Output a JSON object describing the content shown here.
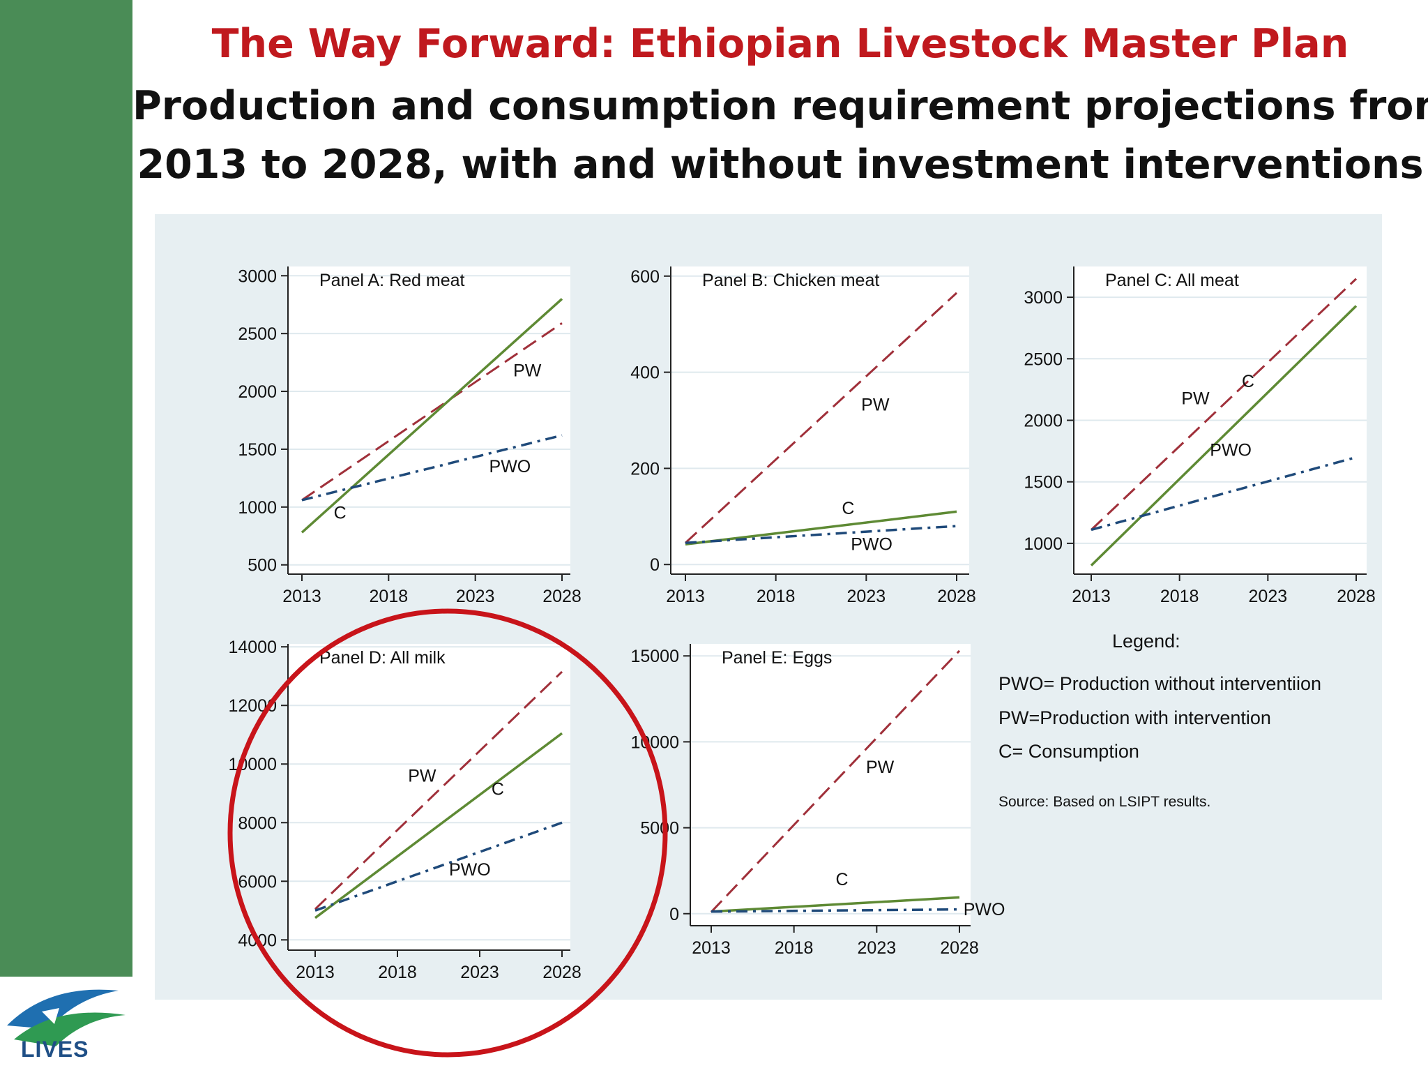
{
  "title": "The Way Forward: Ethiopian Livestock Master Plan",
  "subtitle_line1": "Production and consumption requirement projections from",
  "subtitle_line2": "2013 to 2028, with and without investment interventions",
  "logo_text": "LIVES",
  "colors": {
    "sidebar": "#4a8c56",
    "title": "#c0191e",
    "pw": "#a0303a",
    "c": "#5e8a34",
    "pwo": "#1f4a7a",
    "circle": "#c8141a"
  },
  "legend": {
    "title": "Legend:",
    "pwo": "PWO= Production without interventiion",
    "pw": "PW=Production with intervention",
    "c": "C=  Consumption",
    "source": "Source: Based on LSIPT results."
  },
  "chart_data": [
    {
      "type": "line",
      "title": "Panel A: Red meat",
      "x_ticks": [
        "2013",
        "2018",
        "2023",
        "2028"
      ],
      "y_ticks": [
        "500",
        "1000",
        "1500",
        "2000",
        "2500",
        "3000"
      ],
      "ylim": [
        420,
        3080
      ],
      "series": [
        {
          "name": "PW",
          "style": "dashed",
          "x": [
            2013,
            2028
          ],
          "y": [
            1060,
            2590
          ]
        },
        {
          "name": "C",
          "style": "solid",
          "x": [
            2013,
            2028
          ],
          "y": [
            780,
            2800
          ]
        },
        {
          "name": "PWO",
          "style": "dashdot",
          "x": [
            2013,
            2028
          ],
          "y": [
            1060,
            1620
          ]
        }
      ],
      "labels": [
        {
          "text": "PW",
          "x": 2026,
          "y": 2130
        },
        {
          "text": "PWO",
          "x": 2025,
          "y": 1300
        },
        {
          "text": "C",
          "x": 2015.2,
          "y": 900
        }
      ]
    },
    {
      "type": "line",
      "title": "Panel B: Chicken meat",
      "x_ticks": [
        "2013",
        "2018",
        "2023",
        "2028"
      ],
      "y_ticks": [
        "0",
        "200",
        "400",
        "600"
      ],
      "ylim": [
        -20,
        620
      ],
      "series": [
        {
          "name": "PW",
          "style": "dashed",
          "x": [
            2013,
            2028
          ],
          "y": [
            45,
            565
          ]
        },
        {
          "name": "C",
          "style": "solid",
          "x": [
            2013,
            2028
          ],
          "y": [
            42,
            110
          ]
        },
        {
          "name": "PWO",
          "style": "dashdot",
          "x": [
            2013,
            2028
          ],
          "y": [
            45,
            80
          ]
        }
      ],
      "labels": [
        {
          "text": "PW",
          "x": 2023.5,
          "y": 320
        },
        {
          "text": "C",
          "x": 2022,
          "y": 105
        },
        {
          "text": "PWO",
          "x": 2023.3,
          "y": 30
        }
      ]
    },
    {
      "type": "line",
      "title": "Panel C: All meat",
      "x_ticks": [
        "2013",
        "2018",
        "2023",
        "2028"
      ],
      "y_ticks": [
        "1000",
        "1500",
        "2000",
        "2500",
        "3000"
      ],
      "ylim": [
        750,
        3250
      ],
      "series": [
        {
          "name": "PW",
          "style": "dashed",
          "x": [
            2013,
            2028
          ],
          "y": [
            1110,
            3150
          ]
        },
        {
          "name": "C",
          "style": "solid",
          "x": [
            2013,
            2028
          ],
          "y": [
            820,
            2930
          ]
        },
        {
          "name": "PWO",
          "style": "dashdot",
          "x": [
            2013,
            2028
          ],
          "y": [
            1110,
            1700
          ]
        }
      ],
      "labels": [
        {
          "text": "PW",
          "x": 2018.9,
          "y": 2130
        },
        {
          "text": "C",
          "x": 2222.4,
          "y": 0,
          "skip": true
        },
        {
          "text": "PWO",
          "x": 2020.9,
          "y": 1710
        }
      ]
    },
    {
      "type": "line",
      "title": "Panel D: All milk",
      "x_ticks": [
        "2013",
        "2018",
        "2023",
        "2028"
      ],
      "y_ticks": [
        "4000",
        "6000",
        "8000",
        "10000",
        "12000",
        "14000"
      ],
      "ylim": [
        3650,
        14100
      ],
      "series": [
        {
          "name": "PW",
          "style": "dashed",
          "x": [
            2013,
            2028
          ],
          "y": [
            5050,
            13150
          ]
        },
        {
          "name": "C",
          "style": "solid",
          "x": [
            2013,
            2028
          ],
          "y": [
            4750,
            11050
          ]
        },
        {
          "name": "PWO",
          "style": "dashdot",
          "x": [
            2013,
            2028
          ],
          "y": [
            5000,
            8000
          ]
        }
      ],
      "labels": [
        {
          "text": "PW",
          "x": 2019.5,
          "y": 9400
        },
        {
          "text": "C",
          "x": 2024.1,
          "y": 8950
        },
        {
          "text": "PWO",
          "x": 2022.4,
          "y": 6200
        }
      ]
    },
    {
      "type": "line",
      "title": "Panel E: Eggs",
      "x_ticks": [
        "2013",
        "2018",
        "2023",
        "2028"
      ],
      "y_ticks": [
        "0",
        "5000",
        "10000",
        "15000"
      ],
      "ylim": [
        -700,
        15700
      ],
      "series": [
        {
          "name": "PW",
          "style": "dashed",
          "x": [
            2013,
            2028
          ],
          "y": [
            100,
            15300
          ]
        },
        {
          "name": "C",
          "style": "solid",
          "x": [
            2013,
            2028
          ],
          "y": [
            120,
            950
          ]
        },
        {
          "name": "PWO",
          "style": "dashdot",
          "x": [
            2013,
            2028
          ],
          "y": [
            120,
            250
          ]
        }
      ],
      "labels": [
        {
          "text": "PW",
          "x": 2023.2,
          "y": 8200
        },
        {
          "text": "C",
          "x": 2020.9,
          "y": 1650
        },
        {
          "text": "PWO",
          "x": 2029.5,
          "y": -100
        }
      ]
    }
  ]
}
